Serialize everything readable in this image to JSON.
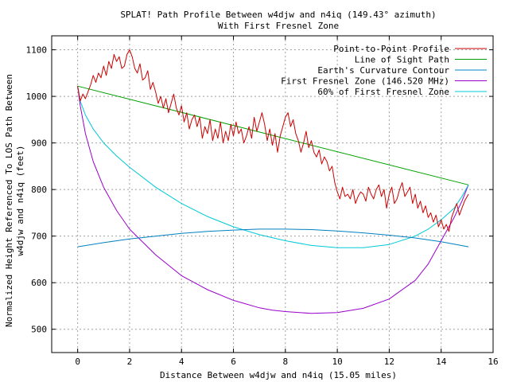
{
  "chart_data": {
    "type": "line",
    "title": "SPLAT! Path Profile Between w4djw and n4iq (149.43° azimuth)",
    "subtitle": "With First Fresnel Zone",
    "xlabel": "Distance Between w4djw and n4iq (15.05 miles)",
    "ylabel_line1": "Normalized Height Referenced To LOS Path Between",
    "ylabel_line2": "w4djw and n4iq (feet)",
    "xlim": [
      -1,
      16
    ],
    "ylim": [
      450,
      1130
    ],
    "x_ticks": [
      0,
      2,
      4,
      6,
      8,
      10,
      12,
      14,
      16
    ],
    "y_ticks": [
      500,
      600,
      700,
      800,
      900,
      1000,
      1100
    ],
    "x_tick_labels": [
      "0",
      "2",
      "4",
      "6",
      "8",
      "10",
      "12",
      "14",
      "16"
    ],
    "y_tick_labels": [
      "500",
      "600",
      "700",
      "800",
      "900",
      "1000",
      "1100"
    ],
    "grid": true,
    "legend_position": "top-right",
    "series": [
      {
        "name": "Point-to-Point Profile",
        "color": "#cc0000",
        "x": [
          0,
          0.1,
          0.2,
          0.3,
          0.4,
          0.5,
          0.6,
          0.7,
          0.8,
          0.9,
          1.0,
          1.1,
          1.2,
          1.3,
          1.4,
          1.5,
          1.6,
          1.7,
          1.8,
          1.9,
          2.0,
          2.1,
          2.2,
          2.3,
          2.4,
          2.5,
          2.6,
          2.7,
          2.8,
          2.9,
          3.0,
          3.1,
          3.2,
          3.3,
          3.4,
          3.5,
          3.6,
          3.7,
          3.8,
          3.9,
          4.0,
          4.1,
          4.2,
          4.3,
          4.4,
          4.5,
          4.6,
          4.7,
          4.8,
          4.9,
          5.0,
          5.1,
          5.2,
          5.3,
          5.4,
          5.5,
          5.6,
          5.7,
          5.8,
          5.9,
          6.0,
          6.1,
          6.2,
          6.3,
          6.4,
          6.5,
          6.6,
          6.7,
          6.8,
          6.9,
          7.0,
          7.1,
          7.2,
          7.3,
          7.4,
          7.5,
          7.6,
          7.7,
          7.8,
          7.9,
          8.0,
          8.1,
          8.2,
          8.3,
          8.4,
          8.5,
          8.6,
          8.7,
          8.8,
          8.9,
          9.0,
          9.1,
          9.2,
          9.3,
          9.4,
          9.5,
          9.6,
          9.7,
          9.8,
          9.9,
          10.0,
          10.1,
          10.2,
          10.3,
          10.4,
          10.5,
          10.6,
          10.7,
          10.8,
          10.9,
          11.0,
          11.1,
          11.2,
          11.3,
          11.4,
          11.5,
          11.6,
          11.7,
          11.8,
          11.9,
          12.0,
          12.1,
          12.2,
          12.3,
          12.4,
          12.5,
          12.6,
          12.7,
          12.8,
          12.9,
          13.0,
          13.1,
          13.2,
          13.3,
          13.4,
          13.5,
          13.6,
          13.7,
          13.8,
          13.9,
          14.0,
          14.1,
          14.2,
          14.3,
          14.4,
          14.5,
          14.6,
          14.7,
          14.8,
          14.9,
          15.05
        ],
        "y": [
          1022,
          990,
          1005,
          995,
          1010,
          1025,
          1045,
          1030,
          1050,
          1040,
          1065,
          1045,
          1075,
          1060,
          1090,
          1075,
          1085,
          1060,
          1065,
          1090,
          1100,
          1085,
          1060,
          1050,
          1070,
          1035,
          1040,
          1055,
          1015,
          1030,
          1010,
          985,
          1000,
          975,
          995,
          965,
          985,
          1005,
          975,
          960,
          980,
          945,
          965,
          930,
          950,
          960,
          935,
          955,
          910,
          935,
          920,
          950,
          905,
          930,
          910,
          945,
          900,
          925,
          905,
          940,
          915,
          945,
          920,
          930,
          900,
          915,
          935,
          910,
          955,
          925,
          945,
          965,
          940,
          905,
          930,
          895,
          920,
          880,
          915,
          935,
          955,
          965,
          935,
          950,
          920,
          905,
          880,
          900,
          925,
          890,
          905,
          880,
          870,
          885,
          855,
          870,
          860,
          840,
          850,
          815,
          795,
          780,
          805,
          785,
          790,
          780,
          800,
          770,
          785,
          795,
          790,
          775,
          805,
          790,
          780,
          800,
          810,
          785,
          800,
          760,
          790,
          805,
          770,
          780,
          800,
          815,
          785,
          795,
          805,
          770,
          790,
          760,
          775,
          750,
          765,
          740,
          750,
          730,
          745,
          720,
          735,
          715,
          725,
          710,
          740,
          755,
          770,
          745,
          760,
          775,
          790
        ]
      },
      {
        "name": "Line of Sight Path",
        "color": "#00a000",
        "x": [
          0,
          15.05
        ],
        "y": [
          1022,
          810
        ]
      },
      {
        "name": "Earth's Curvature Contour",
        "color": "#0080c0",
        "x": [
          0,
          1,
          2,
          3,
          4,
          5,
          6,
          7,
          7.5,
          8,
          9,
          10,
          11,
          12,
          13,
          14,
          15.05
        ],
        "y": [
          677,
          686,
          694,
          700,
          706,
          710,
          713,
          715,
          715,
          715,
          714,
          711,
          707,
          702,
          696,
          688,
          677
        ]
      },
      {
        "name": "First Fresnel Zone (146.520 MHz)",
        "color": "#9900cc",
        "x": [
          0,
          0.1,
          0.3,
          0.6,
          1,
          1.5,
          2,
          3,
          4,
          5,
          6,
          7,
          7.5,
          8,
          9,
          10,
          11,
          12,
          13,
          13.5,
          14,
          14.5,
          14.8,
          15.05
        ],
        "y": [
          1022,
          980,
          920,
          860,
          805,
          755,
          715,
          660,
          615,
          585,
          562,
          546,
          541,
          538,
          534,
          536,
          545,
          565,
          605,
          640,
          690,
          740,
          775,
          810
        ]
      },
      {
        "name": "60% of First Fresnel Zone",
        "color": "#00c8d8",
        "x": [
          0,
          0.1,
          0.3,
          0.6,
          1,
          1.5,
          2,
          3,
          4,
          5,
          6,
          7,
          8,
          9,
          10,
          11,
          12,
          13,
          13.5,
          14,
          14.5,
          14.8,
          15.05
        ],
        "y": [
          1022,
          990,
          960,
          930,
          900,
          872,
          848,
          805,
          770,
          742,
          720,
          703,
          690,
          680,
          675,
          675,
          682,
          700,
          715,
          735,
          760,
          785,
          810
        ]
      }
    ]
  }
}
